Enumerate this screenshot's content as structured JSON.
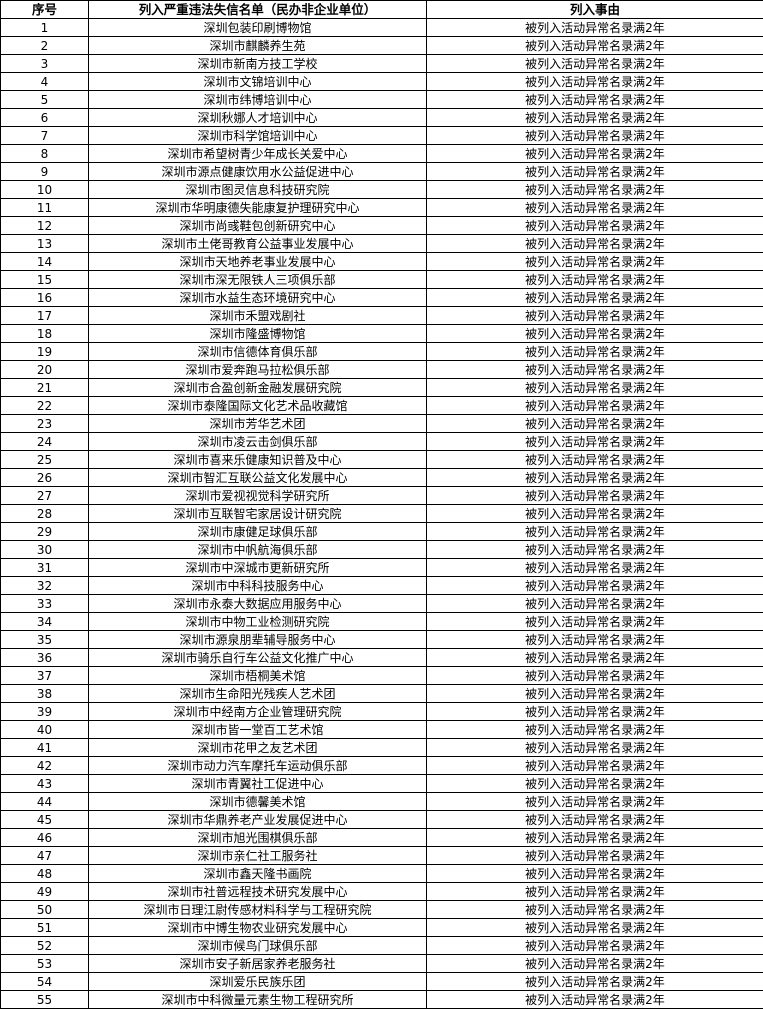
{
  "headers": {
    "index": "序号",
    "name": "列入严重违法失信名单（民办非企业单位）",
    "reason": "列入事由"
  },
  "rows": [
    {
      "no": "1",
      "name": "深圳包装印刷博物馆",
      "reason": "被列入活动异常名录满2年"
    },
    {
      "no": "2",
      "name": "深圳市麒麟养生苑",
      "reason": "被列入活动异常名录满2年"
    },
    {
      "no": "3",
      "name": "深圳市新南方技工学校",
      "reason": "被列入活动异常名录满2年"
    },
    {
      "no": "4",
      "name": "深圳市文锦培训中心",
      "reason": "被列入活动异常名录满2年"
    },
    {
      "no": "5",
      "name": "深圳市纬博培训中心",
      "reason": "被列入活动异常名录满2年"
    },
    {
      "no": "6",
      "name": "深圳秋娜人才培训中心",
      "reason": "被列入活动异常名录满2年"
    },
    {
      "no": "7",
      "name": "深圳市科学馆培训中心",
      "reason": "被列入活动异常名录满2年"
    },
    {
      "no": "8",
      "name": "深圳市希望树青少年成长关爱中心",
      "reason": "被列入活动异常名录满2年"
    },
    {
      "no": "9",
      "name": "深圳市源点健康饮用水公益促进中心",
      "reason": "被列入活动异常名录满2年"
    },
    {
      "no": "10",
      "name": "深圳市图灵信息科技研究院",
      "reason": "被列入活动异常名录满2年"
    },
    {
      "no": "11",
      "name": "深圳市华明康德失能康复护理研究中心",
      "reason": "被列入活动异常名录满2年"
    },
    {
      "no": "12",
      "name": "深圳市尚彧鞋包创新研究中心",
      "reason": "被列入活动异常名录满2年"
    },
    {
      "no": "13",
      "name": "深圳市土佬哥教育公益事业发展中心",
      "reason": "被列入活动异常名录满2年"
    },
    {
      "no": "14",
      "name": "深圳市天地养老事业发展中心",
      "reason": "被列入活动异常名录满2年"
    },
    {
      "no": "15",
      "name": "深圳市深无限铁人三项俱乐部",
      "reason": "被列入活动异常名录满2年"
    },
    {
      "no": "16",
      "name": "深圳市水益生态环境研究中心",
      "reason": "被列入活动异常名录满2年"
    },
    {
      "no": "17",
      "name": "深圳市禾盟戏剧社",
      "reason": "被列入活动异常名录满2年"
    },
    {
      "no": "18",
      "name": "深圳市隆盛博物馆",
      "reason": "被列入活动异常名录满2年"
    },
    {
      "no": "19",
      "name": "深圳市信德体育俱乐部",
      "reason": "被列入活动异常名录满2年"
    },
    {
      "no": "20",
      "name": "深圳市爱奔跑马拉松俱乐部",
      "reason": "被列入活动异常名录满2年"
    },
    {
      "no": "21",
      "name": "深圳市合盈创新金融发展研究院",
      "reason": "被列入活动异常名录满2年"
    },
    {
      "no": "22",
      "name": "深圳市泰隆国际文化艺术品收藏馆",
      "reason": "被列入活动异常名录满2年"
    },
    {
      "no": "23",
      "name": "深圳市芳华艺术团",
      "reason": "被列入活动异常名录满2年"
    },
    {
      "no": "24",
      "name": "深圳市凌云击剑俱乐部",
      "reason": "被列入活动异常名录满2年"
    },
    {
      "no": "25",
      "name": "深圳市喜来乐健康知识普及中心",
      "reason": "被列入活动异常名录满2年"
    },
    {
      "no": "26",
      "name": "深圳市智汇互联公益文化发展中心",
      "reason": "被列入活动异常名录满2年"
    },
    {
      "no": "27",
      "name": "深圳市爱视视觉科学研究所",
      "reason": "被列入活动异常名录满2年"
    },
    {
      "no": "28",
      "name": "深圳市互联智宅家居设计研究院",
      "reason": "被列入活动异常名录满2年"
    },
    {
      "no": "29",
      "name": "深圳市康健足球俱乐部",
      "reason": "被列入活动异常名录满2年"
    },
    {
      "no": "30",
      "name": "深圳市中帆航海俱乐部",
      "reason": "被列入活动异常名录满2年"
    },
    {
      "no": "31",
      "name": "深圳市中深城市更新研究所",
      "reason": "被列入活动异常名录满2年"
    },
    {
      "no": "32",
      "name": "深圳市中科科技服务中心",
      "reason": "被列入活动异常名录满2年"
    },
    {
      "no": "33",
      "name": "深圳市永泰大数据应用服务中心",
      "reason": "被列入活动异常名录满2年"
    },
    {
      "no": "34",
      "name": "深圳市中物工业检测研究院",
      "reason": "被列入活动异常名录满2年"
    },
    {
      "no": "35",
      "name": "深圳市源泉朋辈辅导服务中心",
      "reason": "被列入活动异常名录满2年"
    },
    {
      "no": "36",
      "name": "深圳市骑乐自行车公益文化推广中心",
      "reason": "被列入活动异常名录满2年"
    },
    {
      "no": "37",
      "name": "深圳市梧桐美术馆",
      "reason": "被列入活动异常名录满2年"
    },
    {
      "no": "38",
      "name": "深圳市生命阳光残疾人艺术团",
      "reason": "被列入活动异常名录满2年"
    },
    {
      "no": "39",
      "name": "深圳市中经南方企业管理研究院",
      "reason": "被列入活动异常名录满2年"
    },
    {
      "no": "40",
      "name": "深圳市皆一堂百工艺术馆",
      "reason": "被列入活动异常名录满2年"
    },
    {
      "no": "41",
      "name": "深圳市花甲之友艺术团",
      "reason": "被列入活动异常名录满2年"
    },
    {
      "no": "42",
      "name": "深圳市动力汽车摩托车运动俱乐部",
      "reason": "被列入活动异常名录满2年"
    },
    {
      "no": "43",
      "name": "深圳市青翼社工促进中心",
      "reason": "被列入活动异常名录满2年"
    },
    {
      "no": "44",
      "name": "深圳市德馨美术馆",
      "reason": "被列入活动异常名录满2年"
    },
    {
      "no": "45",
      "name": "深圳市华鼎养老产业发展促进中心",
      "reason": "被列入活动异常名录满2年"
    },
    {
      "no": "46",
      "name": "深圳市旭光围棋俱乐部",
      "reason": "被列入活动异常名录满2年"
    },
    {
      "no": "47",
      "name": "深圳市亲仁社工服务社",
      "reason": "被列入活动异常名录满2年"
    },
    {
      "no": "48",
      "name": "深圳市鑫天隆书画院",
      "reason": "被列入活动异常名录满2年"
    },
    {
      "no": "49",
      "name": "深圳市社普远程技术研究发展中心",
      "reason": "被列入活动异常名录满2年"
    },
    {
      "no": "50",
      "name": "深圳市日理江尉传感材料科学与工程研究院",
      "reason": "被列入活动异常名录满2年"
    },
    {
      "no": "51",
      "name": "深圳市中博生物农业研究发展中心",
      "reason": "被列入活动异常名录满2年"
    },
    {
      "no": "52",
      "name": "深圳市候鸟门球俱乐部",
      "reason": "被列入活动异常名录满2年"
    },
    {
      "no": "53",
      "name": "深圳市安子新居家养老服务社",
      "reason": "被列入活动异常名录满2年"
    },
    {
      "no": "54",
      "name": "深圳爱乐民族乐团",
      "reason": "被列入活动异常名录满2年"
    },
    {
      "no": "55",
      "name": "深圳市中科微量元素生物工程研究所",
      "reason": "被列入活动异常名录满2年"
    }
  ]
}
